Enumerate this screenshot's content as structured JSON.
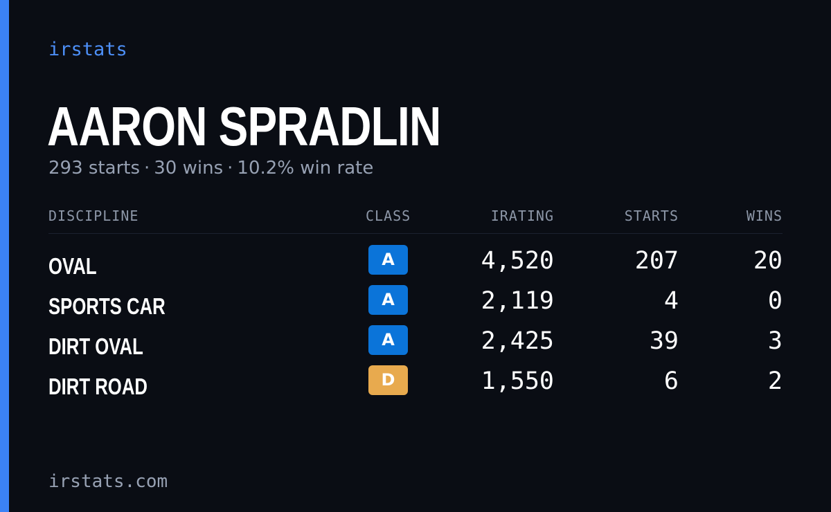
{
  "brand": "irstats",
  "driver_name": "AARON SPRADLIN",
  "summary": {
    "starts": "293 starts",
    "wins": "30 wins",
    "win_rate": "10.2% win rate",
    "separator": "·"
  },
  "table": {
    "headers": {
      "discipline": "DISCIPLINE",
      "class": "CLASS",
      "irating": "IRATING",
      "starts": "STARTS",
      "wins": "WINS"
    },
    "rows": [
      {
        "discipline": "OVAL",
        "class": "A",
        "class_color": "#0b74d9",
        "irating": "4,520",
        "starts": "207",
        "wins": "20"
      },
      {
        "discipline": "SPORTS CAR",
        "class": "A",
        "class_color": "#0b74d9",
        "irating": "2,119",
        "starts": "4",
        "wins": "0"
      },
      {
        "discipline": "DIRT OVAL",
        "class": "A",
        "class_color": "#0b74d9",
        "irating": "2,425",
        "starts": "39",
        "wins": "3"
      },
      {
        "discipline": "DIRT ROAD",
        "class": "D",
        "class_color": "#e8aa4e",
        "irating": "1,550",
        "starts": "6",
        "wins": "2"
      }
    ]
  },
  "footer": "irstats.com",
  "colors": {
    "accent": "#3b82f6",
    "background": "#0a0d14",
    "class_a": "#0b74d9",
    "class_d": "#e8aa4e"
  }
}
